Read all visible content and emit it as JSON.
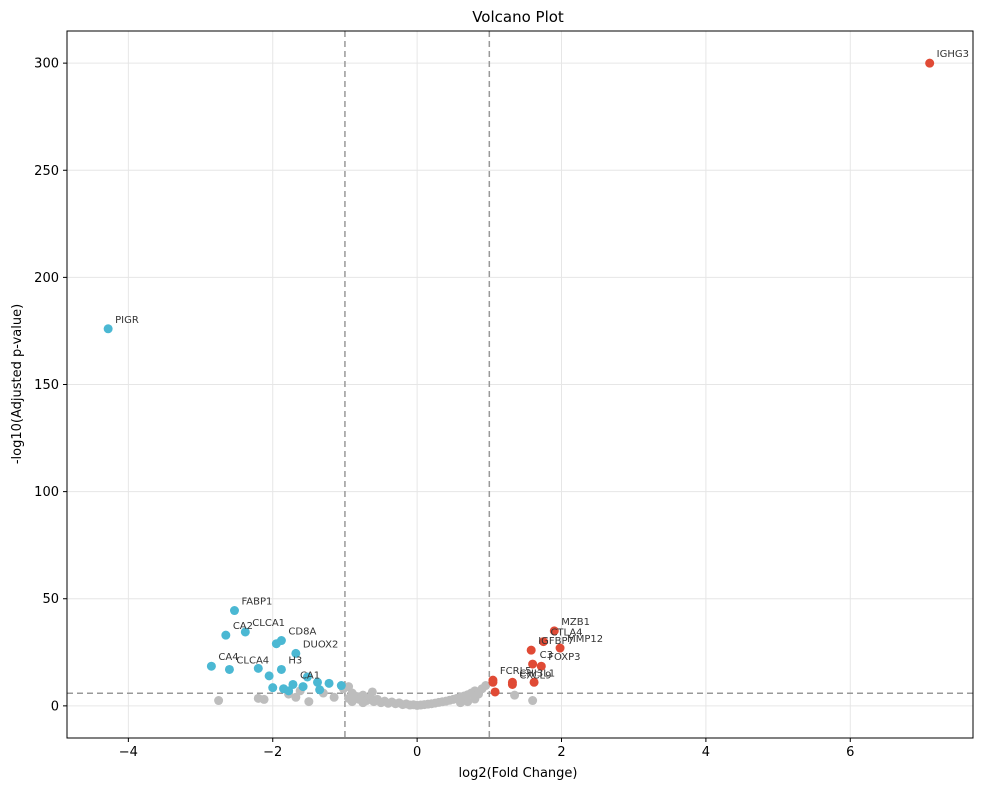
{
  "chart_data": {
    "type": "scatter",
    "title": "Volcano Plot",
    "xlabel": "log2(Fold Change)",
    "ylabel": "-log10(Adjusted p-value)",
    "xlim": [
      -4.85,
      7.7
    ],
    "ylim": [
      -15,
      315
    ],
    "xticks": [
      -4,
      -2,
      0,
      2,
      4,
      6
    ],
    "yticks": [
      0,
      50,
      100,
      150,
      200,
      250,
      300
    ],
    "grid": true,
    "thresholds": {
      "fc_lines": [
        -1,
        1
      ],
      "p_line": 5.9
    },
    "colors": {
      "up": "#e04a35",
      "down": "#4bb8d3",
      "ns": "#bdbdbd",
      "threshold": "#999999"
    },
    "series": [
      {
        "group": "up",
        "points": [
          {
            "x": 7.1,
            "y": 300,
            "label": "IGHG3"
          },
          {
            "x": 1.9,
            "y": 35,
            "label": "MZB1"
          },
          {
            "x": 1.75,
            "y": 30,
            "label": "CTLA4"
          },
          {
            "x": 1.98,
            "y": 27,
            "label": "MMP12"
          },
          {
            "x": 1.58,
            "y": 26,
            "label": "IGFBP7"
          },
          {
            "x": 1.6,
            "y": 19.5,
            "label": "C3"
          },
          {
            "x": 1.72,
            "y": 18.5,
            "label": "FOXP3"
          },
          {
            "x": 1.05,
            "y": 12,
            "label": "FCRL5"
          },
          {
            "x": 1.32,
            "y": 11,
            "label": "CHI3L1"
          },
          {
            "x": 1.32,
            "y": 10,
            "label": "CXCL9"
          },
          {
            "x": 1.62,
            "y": 11
          },
          {
            "x": 1.08,
            "y": 6.5
          },
          {
            "x": 1.05,
            "y": 11
          }
        ]
      },
      {
        "group": "down",
        "points": [
          {
            "x": -4.28,
            "y": 176,
            "label": "PIGR"
          },
          {
            "x": -2.53,
            "y": 44.5,
            "label": "FABP1"
          },
          {
            "x": -2.38,
            "y": 34.5,
            "label": "CLCA1"
          },
          {
            "x": -2.65,
            "y": 33,
            "label": "CA2"
          },
          {
            "x": -1.88,
            "y": 30.5,
            "label": "CD8A"
          },
          {
            "x": -1.95,
            "y": 29
          },
          {
            "x": -1.68,
            "y": 24.5,
            "label": "DUOX2"
          },
          {
            "x": -2.85,
            "y": 18.5,
            "label": "CA4"
          },
          {
            "x": -2.6,
            "y": 17,
            "label": "CLCA4"
          },
          {
            "x": -2.2,
            "y": 17.5
          },
          {
            "x": -1.88,
            "y": 17,
            "label": "H3"
          },
          {
            "x": -2.05,
            "y": 14
          },
          {
            "x": -1.52,
            "y": 13.5
          },
          {
            "x": -1.38,
            "y": 11
          },
          {
            "x": -1.22,
            "y": 10.5
          },
          {
            "x": -1.72,
            "y": 10,
            "label": "CA1"
          },
          {
            "x": -1.58,
            "y": 9
          },
          {
            "x": -1.05,
            "y": 9.5
          },
          {
            "x": -2.0,
            "y": 8.5
          },
          {
            "x": -1.85,
            "y": 8
          },
          {
            "x": -1.35,
            "y": 7.5
          },
          {
            "x": -1.78,
            "y": 7
          }
        ]
      },
      {
        "group": "ns",
        "points": [
          {
            "x": -2.75,
            "y": 2.5
          },
          {
            "x": -2.2,
            "y": 3.5
          },
          {
            "x": -2.12,
            "y": 3
          },
          {
            "x": -1.78,
            "y": 5.5
          },
          {
            "x": -1.68,
            "y": 4
          },
          {
            "x": -1.5,
            "y": 2
          },
          {
            "x": -1.62,
            "y": 7
          },
          {
            "x": -1.3,
            "y": 6
          },
          {
            "x": -1.15,
            "y": 4
          },
          {
            "x": -1.02,
            "y": 8
          },
          {
            "x": -0.95,
            "y": 9
          },
          {
            "x": -0.9,
            "y": 6
          },
          {
            "x": -0.85,
            "y": 4.5
          },
          {
            "x": -0.8,
            "y": 3
          },
          {
            "x": -0.75,
            "y": 5
          },
          {
            "x": -0.7,
            "y": 2.5
          },
          {
            "x": -0.65,
            "y": 4
          },
          {
            "x": -0.6,
            "y": 2
          },
          {
            "x": -0.55,
            "y": 3
          },
          {
            "x": -0.5,
            "y": 1.5
          },
          {
            "x": -0.45,
            "y": 2.2
          },
          {
            "x": -0.4,
            "y": 1.2
          },
          {
            "x": -0.35,
            "y": 1.8
          },
          {
            "x": -0.3,
            "y": 1
          },
          {
            "x": -0.25,
            "y": 1.4
          },
          {
            "x": -0.2,
            "y": 0.6
          },
          {
            "x": -0.15,
            "y": 0.9
          },
          {
            "x": -0.1,
            "y": 0.4
          },
          {
            "x": -0.05,
            "y": 0.5
          },
          {
            "x": 0.0,
            "y": 0.2
          },
          {
            "x": 0.05,
            "y": 0.4
          },
          {
            "x": 0.1,
            "y": 0.6
          },
          {
            "x": 0.15,
            "y": 0.8
          },
          {
            "x": 0.2,
            "y": 1.0
          },
          {
            "x": 0.25,
            "y": 1.3
          },
          {
            "x": 0.3,
            "y": 1.6
          },
          {
            "x": 0.35,
            "y": 1.9
          },
          {
            "x": 0.4,
            "y": 2.2
          },
          {
            "x": 0.45,
            "y": 2.6
          },
          {
            "x": 0.5,
            "y": 3.0
          },
          {
            "x": 0.55,
            "y": 3.5
          },
          {
            "x": 0.6,
            "y": 4.0
          },
          {
            "x": 0.65,
            "y": 4.6
          },
          {
            "x": 0.7,
            "y": 5.2
          },
          {
            "x": 0.75,
            "y": 6
          },
          {
            "x": 0.8,
            "y": 7
          },
          {
            "x": 0.85,
            "y": 5.5
          },
          {
            "x": 0.9,
            "y": 8
          },
          {
            "x": 0.95,
            "y": 9.5
          },
          {
            "x": 0.7,
            "y": 2
          },
          {
            "x": 0.6,
            "y": 1.5
          },
          {
            "x": 0.8,
            "y": 3.2
          },
          {
            "x": -0.75,
            "y": 1.5
          },
          {
            "x": -0.9,
            "y": 2
          },
          {
            "x": -0.62,
            "y": 6.5
          },
          {
            "x": -0.95,
            "y": 3.5
          },
          {
            "x": 1.35,
            "y": 5
          },
          {
            "x": 1.6,
            "y": 2.5
          }
        ]
      }
    ]
  }
}
